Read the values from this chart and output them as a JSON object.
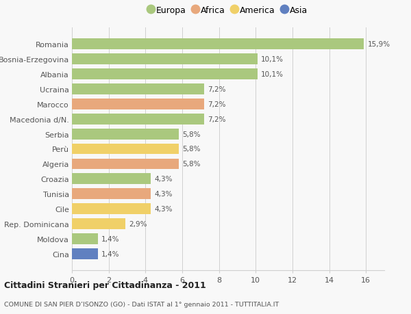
{
  "categories": [
    "Romania",
    "Bosnia-Erzegovina",
    "Albania",
    "Ucraina",
    "Marocco",
    "Macedonia d/N.",
    "Serbia",
    "Perù",
    "Algeria",
    "Croazia",
    "Tunisia",
    "Cile",
    "Rep. Dominicana",
    "Moldova",
    "Cina"
  ],
  "values": [
    15.9,
    10.1,
    10.1,
    7.2,
    7.2,
    7.2,
    5.8,
    5.8,
    5.8,
    4.3,
    4.3,
    4.3,
    2.9,
    1.4,
    1.4
  ],
  "labels": [
    "15,9%",
    "10,1%",
    "10,1%",
    "7,2%",
    "7,2%",
    "7,2%",
    "5,8%",
    "5,8%",
    "5,8%",
    "4,3%",
    "4,3%",
    "4,3%",
    "2,9%",
    "1,4%",
    "1,4%"
  ],
  "continents": [
    "Europa",
    "Europa",
    "Europa",
    "Europa",
    "Africa",
    "Europa",
    "Europa",
    "America",
    "Africa",
    "Europa",
    "Africa",
    "America",
    "America",
    "Europa",
    "Asia"
  ],
  "colors": {
    "Europa": "#aac87e",
    "Africa": "#e8a87c",
    "America": "#f0d068",
    "Asia": "#6080c0"
  },
  "legend_order": [
    "Europa",
    "Africa",
    "America",
    "Asia"
  ],
  "xlim": [
    0,
    17
  ],
  "xticks": [
    0,
    2,
    4,
    6,
    8,
    10,
    12,
    14,
    16
  ],
  "title": "Cittadini Stranieri per Cittadinanza - 2011",
  "subtitle": "COMUNE DI SAN PIER D’ISONZO (GO) - Dati ISTAT al 1° gennaio 2011 - TUTTITALIA.IT",
  "background_color": "#f8f8f8",
  "bar_height": 0.72,
  "grid_color": "#d0d0d0"
}
